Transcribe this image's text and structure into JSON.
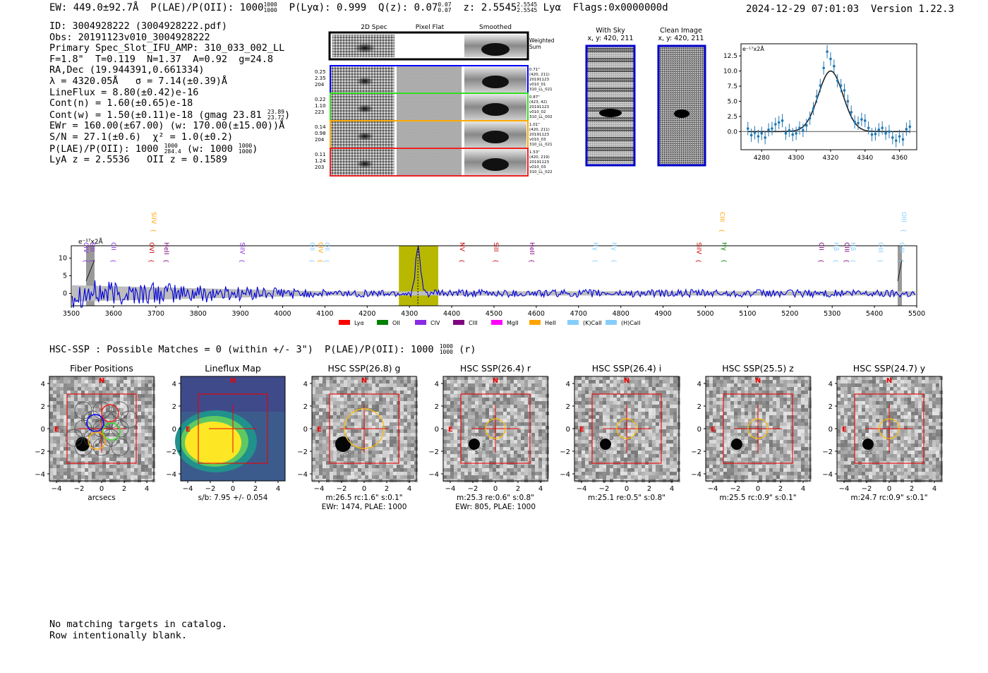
{
  "header": {
    "ew": "EW: 449.0±92.7Å",
    "plae": "P(LAE)/P(OII): 1000",
    "plae_sup": "1000",
    "plae_sub": "1000",
    "plya": "P(Lyα): 0.999",
    "qz": "Q(z): 0.07",
    "qz_sup": "0.07",
    "qz_sub": "0.07",
    "z": "z: 2.5545",
    "z_sup": "2.5545",
    "z_sub": "2.5545",
    "line": "Lyα",
    "flags": "Flags:0x0000000d",
    "datetime": "2024-12-29 07:01:03",
    "version": "Version 1.22.3"
  },
  "info": {
    "id": "ID: 3004928222 (3004928222.pdf)",
    "obs": "Obs: 20191123v010_3004928222",
    "primary": "Primary Spec_Slot_IFU_AMP: 310_033_002_LL",
    "params": "F=1.8\"  T=0.119  N=1.37  A=0.92  g=24.8",
    "radec": "RA,Dec (19.944391,0.661334)",
    "lambda": "λ = 4320.05Å   σ = 7.14(±0.39)Å",
    "lineflux": "LineFlux = 8.80(±0.42)e-16",
    "contn": "Cont(n) = 1.60(±0.65)e-18",
    "contw": "Cont(w) = 1.50(±0.11)e-18 (gmag 23.81",
    "contw_sup": "23.89",
    "contw_sub": "23.72",
    "contw_end": ")",
    "ewr": "EWr = 160.00(±67.00) (w: 170.00(±15.00))Å",
    "sn": "S/N = 27.1(±0.6)  χ² = 1.0(±0.2)",
    "plae": "P(LAE)/P(OII): 1000",
    "plae_sup": "1000",
    "plae_sub": "284.4",
    "plae_w": "(w: 1000",
    "plae_w_sup": "1000",
    "plae_w_sub": "1000",
    "plae_w_end": ")",
    "lyaz": "LyA z = 2.5536   OII z = 0.1589"
  },
  "spec2d": {
    "col_titles": [
      "2D Spec",
      "Pixel Flat",
      "Smoothed"
    ],
    "weighted_label": "Weighted\nSum",
    "rows": [
      {
        "left": [
          "0.25",
          "2.35",
          "204"
        ],
        "right": [
          "0.71\"",
          "(420, 211)",
          "20191123",
          "v010_01",
          "310_LL_021"
        ],
        "color": "#0000ff"
      },
      {
        "left": [
          "0.22",
          "1.10",
          "223"
        ],
        "right": [
          "0.87\"",
          "(423, 42)",
          "20191123",
          "v010_02",
          "310_LL_002"
        ],
        "color": "#33dd22"
      },
      {
        "left": [
          "0.14",
          "0.98",
          "204"
        ],
        "right": [
          "1.01\"",
          "(420, 211)",
          "20191123",
          "v010_03",
          "310_LL_021"
        ],
        "color": "#ffaa00"
      },
      {
        "left": [
          "0.11",
          "1.24",
          "203"
        ],
        "right": [
          "1.53\"",
          "(420, 219)",
          "20191123",
          "v010_03",
          "310_LL_022"
        ],
        "color": "#ee2222"
      }
    ]
  },
  "sky": {
    "title": "With Sky",
    "coords": "x, y: 420, 211"
  },
  "clean": {
    "title": "Clean Image",
    "coords": "x, y: 420, 211"
  },
  "hsc": {
    "summary": "HSC-SSP : Possible Matches = 0 (within +/- 3\")  P(LAE)/P(OII): 1000",
    "summary_sup": "1000",
    "summary_sub": "1000",
    "summary_end": "(r)",
    "cutouts": [
      {
        "title": "Fiber Positions",
        "sub1": "arcsecs",
        "sub2": ""
      },
      {
        "title": "Lineflux Map",
        "sub1": "s/b: 7.95 +/- 0.054",
        "sub2": ""
      },
      {
        "title": "HSC SSP(26.8) g",
        "sub1": "m:26.5 rc:1.6\"  s:0.1\"",
        "sub2": "EWr: 1474, PLAE: 1000"
      },
      {
        "title": "HSC SSP(26.4) r",
        "sub1": "m:25.3  re:0.6\"  s:0.8\"",
        "sub2": "EWr: 805, PLAE: 1000"
      },
      {
        "title": "HSC SSP(26.4) i",
        "sub1": "m:25.1  re:0.5\"  s:0.8\"",
        "sub2": ""
      },
      {
        "title": "HSC SSP(25.5) z",
        "sub1": "m:25.5 rc:0.9\"  s:0.1\"",
        "sub2": ""
      },
      {
        "title": "HSC SSP(24.7) y",
        "sub1": "m:24.7 rc:0.9\"  s:0.1\"",
        "sub2": ""
      }
    ],
    "axis_ticks": [
      "−4",
      "−2",
      "0",
      "2",
      "4"
    ],
    "north": "N",
    "east": "E"
  },
  "footer": {
    "line1": "No matching targets in catalog.",
    "line2": "Row intentionally blank."
  },
  "colors": {
    "blue": "#0000ff",
    "green": "#33dd22",
    "orange": "#ffaa00",
    "red": "#ee2222",
    "olive": "#b8b800",
    "errbar": "#1f77b4"
  },
  "chart_data": [
    {
      "type": "scatter",
      "title": "",
      "ylabel_unit": "e⁻¹⁷x2Å",
      "xlabel": "",
      "xlim": [
        4268,
        4370
      ],
      "ylim": [
        -3,
        14.5
      ],
      "xticks": [
        4280,
        4300,
        4320,
        4340,
        4360
      ],
      "yticks": [
        0.0,
        2.5,
        5.0,
        7.5,
        10.0,
        12.5
      ],
      "ytick_labels": [
        "0.0",
        "2.5",
        "5.0",
        "7.5",
        "10.0",
        "12.5"
      ],
      "fit": {
        "center": 4320.05,
        "sigma": 7.14,
        "amplitude": 10.0,
        "continuum": 0.0
      },
      "x": [
        4272,
        4274,
        4276,
        4278,
        4280,
        4282,
        4284,
        4286,
        4288,
        4290,
        4292,
        4294,
        4296,
        4298,
        4300,
        4302,
        4304,
        4306,
        4308,
        4310,
        4312,
        4314,
        4316,
        4318,
        4320,
        4322,
        4324,
        4326,
        4328,
        4330,
        4332,
        4334,
        4336,
        4338,
        4340,
        4342,
        4344,
        4346,
        4348,
        4350,
        4352,
        4354,
        4356,
        4358,
        4360,
        4362,
        4364,
        4366
      ],
      "y": [
        0.5,
        -0.6,
        -0.2,
        -0.8,
        -0.3,
        -1.0,
        0.3,
        0.5,
        1.2,
        1.5,
        1.8,
        -0.3,
        0.2,
        -0.5,
        -0.3,
        0.6,
        0.2,
        1.0,
        2.2,
        3.8,
        5.8,
        7.6,
        10.5,
        13.2,
        12.0,
        10.8,
        8.4,
        7.6,
        6.8,
        5.0,
        3.2,
        1.6,
        1.4,
        2.0,
        1.8,
        0.6,
        -0.5,
        -0.4,
        0.3,
        0.6,
        -0.3,
        0.0,
        -1.0,
        -1.5,
        -0.8,
        -1.3,
        0.4,
        0.8
      ],
      "yerr": 1.1
    },
    {
      "type": "line",
      "title": "",
      "ylabel_unit": "e⁻¹⁷x2Å",
      "xlim": [
        3500,
        5500
      ],
      "ylim": [
        -3.5,
        13.5
      ],
      "xticks": [
        3500,
        3600,
        3700,
        3800,
        3900,
        4000,
        4100,
        4200,
        4300,
        4400,
        4500,
        4600,
        4700,
        4800,
        4900,
        5000,
        5100,
        5200,
        5300,
        5400,
        5500
      ],
      "yticks": [
        0,
        5,
        10
      ],
      "highlight_band": [
        4275,
        4368
      ],
      "line_center": 4320,
      "masked": [
        [
          3535,
          3555
        ],
        [
          5455,
          5465
        ]
      ],
      "noise_model": "flux oscillates around 0 with amplitude decreasing from ~4 at 3500Å to ~1 above 4100Å; emission peak 12.5 at 4320Å",
      "peak": {
        "x": 4320,
        "y": 12.5
      },
      "legend": [
        "Lyα",
        "OII",
        "CIV",
        "CIII",
        "MgII",
        "HeII",
        "(K)CaII",
        "(H)CaII"
      ],
      "legend_colors": [
        "#ff0000",
        "#008000",
        "#8a2be2",
        "#800080",
        "#ff00ff",
        "#ffa500",
        "#87cefa",
        "#87cefa"
      ],
      "line_labels": [
        {
          "label": "CIV",
          "x": 3525,
          "color": "#8a2be2",
          "row": 0
        },
        {
          "label": "SiII",
          "x": 3540,
          "color": "#8a2be2",
          "row": 0
        },
        {
          "label": "CII",
          "x": 3590,
          "color": "#8a2be2",
          "row": 0
        },
        {
          "label": "SiIV",
          "x": 3685,
          "color": "#ffa500",
          "row": 1
        },
        {
          "label": "OVI",
          "x": 3680,
          "color": "#cc0000",
          "row": 0
        },
        {
          "label": "HeII",
          "x": 3715,
          "color": "#800080",
          "row": 0
        },
        {
          "label": "SiIV",
          "x": 3895,
          "color": "#8a2be2",
          "row": 0
        },
        {
          "label": "OII",
          "x": 4060,
          "color": "#87cefa",
          "row": 0
        },
        {
          "label": "CIV",
          "x": 4080,
          "color": "#ffa500",
          "row": 0
        },
        {
          "label": "OII",
          "x": 4095,
          "color": "#87cefa",
          "row": 0
        },
        {
          "label": "NV",
          "x": 4415,
          "color": "#cc0000",
          "row": 0
        },
        {
          "label": "SiII",
          "x": 4495,
          "color": "#cc0000",
          "row": 0
        },
        {
          "label": "HeII",
          "x": 4580,
          "color": "#800080",
          "row": 0
        },
        {
          "label": "Hγ",
          "x": 4730,
          "color": "#87cefa",
          "row": 0
        },
        {
          "label": "Hγ",
          "x": 4775,
          "color": "#87cefa",
          "row": 0
        },
        {
          "label": "SiIV",
          "x": 4975,
          "color": "#cc0000",
          "row": 0
        },
        {
          "label": "CIII",
          "x": 5030,
          "color": "#ffa500",
          "row": 1
        },
        {
          "label": "Hγ",
          "x": 5035,
          "color": "#008000",
          "row": 0
        },
        {
          "label": "CII",
          "x": 5265,
          "color": "#800080",
          "row": 0
        },
        {
          "label": "Hβ",
          "x": 5300,
          "color": "#87cefa",
          "row": 0
        },
        {
          "label": "CIII",
          "x": 5325,
          "color": "#800080",
          "row": 0
        },
        {
          "label": "Hβ",
          "x": 5340,
          "color": "#87cefa",
          "row": 0
        },
        {
          "label": "OIII",
          "x": 5405,
          "color": "#87cefa",
          "row": 0
        },
        {
          "label": "OIII",
          "x": 5460,
          "color": "#87cefa",
          "row": 1
        },
        {
          "label": "OIII",
          "x": 5455,
          "color": "#87cefa",
          "row": 0
        }
      ]
    }
  ]
}
